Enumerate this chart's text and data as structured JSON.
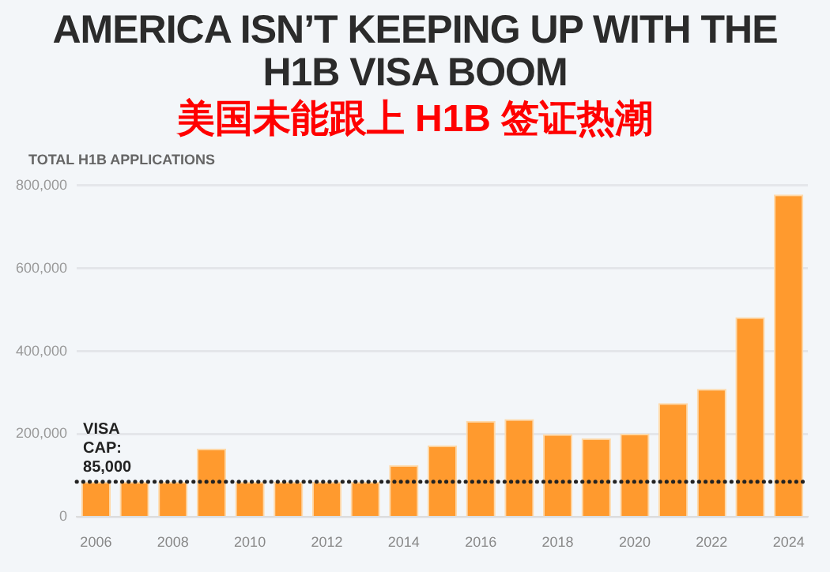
{
  "chart_data": {
    "type": "bar",
    "title": "AMERICA ISN’T KEEPING UP WITH THE H1B VISA BOOM",
    "subtitle": "美国未能跟上 H1B 签证热潮",
    "ylabel": "TOTAL H1B APPLICATIONS",
    "categories": [
      "2006",
      null,
      "2008",
      null,
      "2010",
      null,
      "2012",
      null,
      "2014",
      null,
      "2016",
      null,
      "2018",
      null,
      "2020",
      null,
      "2022",
      null,
      "2024"
    ],
    "values": [
      85000,
      85000,
      85000,
      165000,
      85000,
      85000,
      85000,
      85000,
      125000,
      173000,
      232000,
      236000,
      200000,
      190000,
      201000,
      275000,
      309000,
      482000,
      778000
    ],
    "color": "#ff9a2e",
    "ylim": [
      0,
      800000
    ],
    "yticks": [
      {
        "value": 0,
        "label": "0"
      },
      {
        "value": 200000,
        "label": "200,000"
      },
      {
        "value": 400000,
        "label": "400,000"
      },
      {
        "value": 600000,
        "label": "600,000"
      },
      {
        "value": 800000,
        "label": "800,000"
      }
    ],
    "grid": "y",
    "ref_lines": [
      {
        "axis": "y",
        "value": 85000,
        "label": "VISA CAP: 85,000",
        "color": "#222222",
        "line_style": "dotted"
      }
    ]
  }
}
